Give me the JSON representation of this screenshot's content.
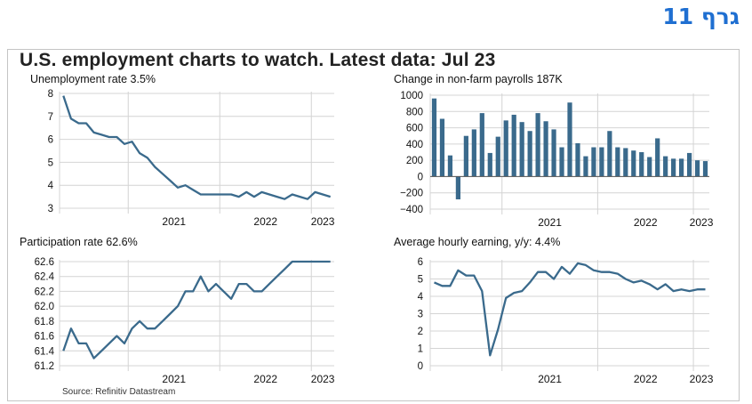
{
  "header": {
    "hebrew_title": "גרף 11",
    "main_title": "U.S. employment charts to watch. Latest data: Jul 23",
    "source": "Source: Refinitiv Datastream"
  },
  "colors": {
    "line": "#3a6a8c",
    "bar": "#3a6a8c",
    "grid": "#d4d4d4",
    "hebrew_title": "#1f6fd1"
  },
  "chart_data": [
    {
      "type": "line",
      "title": "Unemployment rate 3.5%",
      "xlabel": "",
      "ylabel": "",
      "ylim": [
        3,
        8
      ],
      "yticks": [
        "3",
        "4",
        "5",
        "6",
        "7",
        "8"
      ],
      "xticks": [
        "2021",
        "2022",
        "2023"
      ],
      "x_start": "2020-04",
      "series": [
        {
          "values": [
            7.9,
            6.9,
            6.7,
            6.7,
            6.3,
            6.2,
            6.1,
            6.1,
            5.8,
            5.9,
            5.4,
            5.2,
            4.8,
            4.5,
            4.2,
            3.9,
            4.0,
            3.8,
            3.6,
            3.6,
            3.6,
            3.6,
            3.6,
            3.5,
            3.7,
            3.5,
            3.7,
            3.6,
            3.5,
            3.4,
            3.6,
            3.5,
            3.4,
            3.7,
            3.6,
            3.5
          ]
        }
      ]
    },
    {
      "type": "bar",
      "title": "Change in non-farm payrolls 187K",
      "xlabel": "",
      "ylabel": "",
      "ylim": [
        -400,
        1000
      ],
      "yticks": [
        "−400",
        "−200",
        "0",
        "200",
        "400",
        "600",
        "800",
        "1000"
      ],
      "xticks": [
        "2021",
        "2022",
        "2023"
      ],
      "x_start": "2020-04",
      "series": [
        {
          "values": [
            960,
            710,
            260,
            -280,
            500,
            580,
            780,
            290,
            490,
            690,
            760,
            670,
            560,
            780,
            680,
            580,
            360,
            910,
            410,
            250,
            360,
            360,
            560,
            360,
            350,
            320,
            300,
            240,
            470,
            250,
            220,
            220,
            290,
            200,
            190
          ]
        }
      ]
    },
    {
      "type": "line",
      "title": "Participation rate 62.6%",
      "xlabel": "",
      "ylabel": "",
      "ylim": [
        61.2,
        62.6
      ],
      "yticks": [
        "61.2",
        "61.4",
        "61.6",
        "61.8",
        "62.0",
        "62.2",
        "62.4",
        "62.6"
      ],
      "xticks": [
        "2021",
        "2022",
        "2023"
      ],
      "x_start": "2020-04",
      "series": [
        {
          "values": [
            61.4,
            61.7,
            61.5,
            61.5,
            61.3,
            61.4,
            61.5,
            61.6,
            61.5,
            61.7,
            61.8,
            61.7,
            61.7,
            61.8,
            61.9,
            62.0,
            62.2,
            62.2,
            62.4,
            62.2,
            62.3,
            62.2,
            62.1,
            62.3,
            62.3,
            62.2,
            62.2,
            62.3,
            62.4,
            62.5,
            62.6,
            62.6,
            62.6,
            62.6,
            62.6,
            62.6
          ]
        }
      ]
    },
    {
      "type": "line",
      "title": "Average hourly earning, y/y: 4.4%",
      "xlabel": "",
      "ylabel": "",
      "ylim": [
        0,
        6
      ],
      "yticks": [
        "0",
        "1",
        "2",
        "3",
        "4",
        "5",
        "6"
      ],
      "xticks": [
        "2021",
        "2022",
        "2023"
      ],
      "x_start": "2020-04",
      "series": [
        {
          "values": [
            4.8,
            4.6,
            4.6,
            5.5,
            5.2,
            5.2,
            4.3,
            0.6,
            2.1,
            3.9,
            4.2,
            4.3,
            4.8,
            5.4,
            5.4,
            5.0,
            5.7,
            5.3,
            5.9,
            5.8,
            5.5,
            5.4,
            5.4,
            5.3,
            5.0,
            4.8,
            4.9,
            4.7,
            4.4,
            4.7,
            4.3,
            4.4,
            4.3,
            4.4,
            4.4
          ]
        }
      ]
    }
  ]
}
